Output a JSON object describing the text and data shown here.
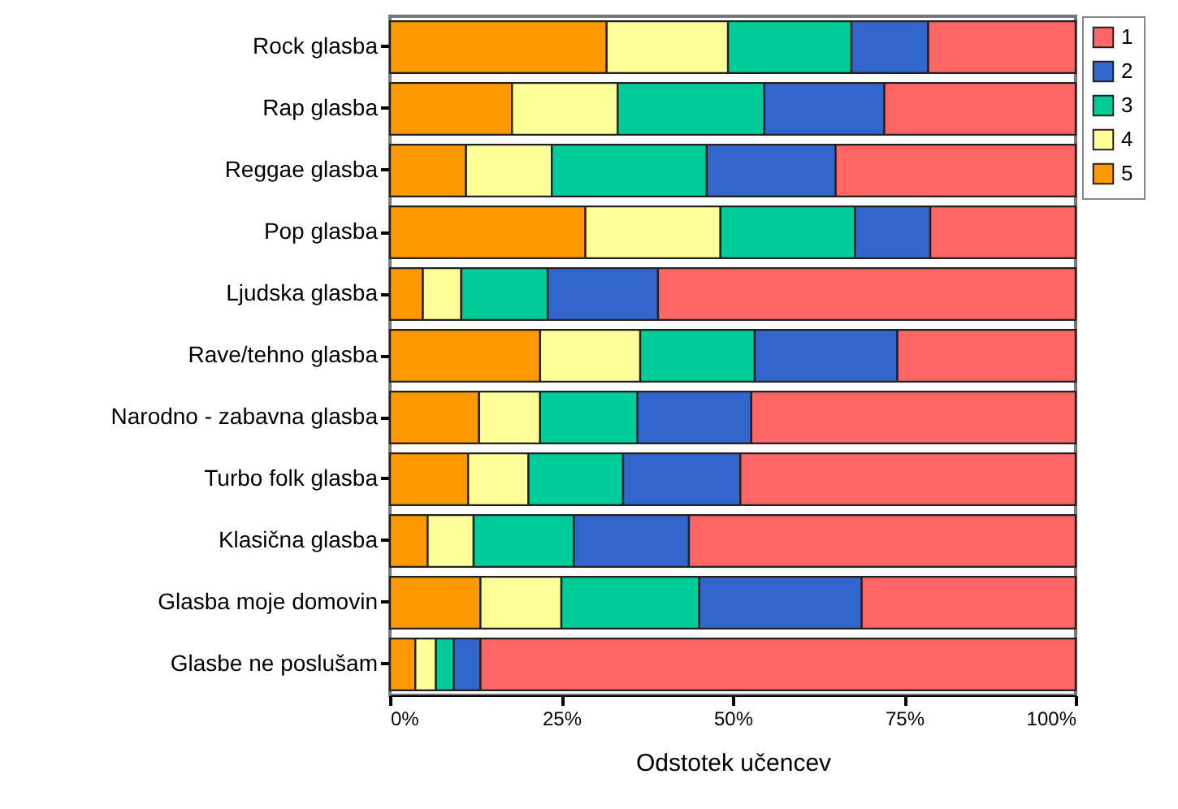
{
  "chart_data": {
    "type": "bar",
    "orientation": "horizontal",
    "stacked": true,
    "xlabel": "Odstotek učencev",
    "categories": [
      "Rock glasba",
      "Rap glasba",
      "Reggae glasba",
      "Pop glasba",
      "Ljudska glasba",
      "Rave/tehno glasba",
      "Narodno - zabavna glasba",
      "Turbo folk glasba",
      "Klasična glasba",
      "Glasba moje domovin",
      "Glasbe ne poslušam"
    ],
    "series": [
      {
        "name": "5",
        "color": "#ff9900",
        "values": [
          31.6,
          17.8,
          11.1,
          28.5,
          4.8,
          21.9,
          13.0,
          11.4,
          5.5,
          13.2,
          3.7
        ]
      },
      {
        "name": "4",
        "color": "#ffff99",
        "values": [
          17.7,
          15.4,
          12.5,
          19.7,
          5.6,
          14.6,
          8.9,
          8.8,
          6.7,
          11.8,
          3.0
        ]
      },
      {
        "name": "3",
        "color": "#00cc99",
        "values": [
          18.0,
          21.4,
          22.6,
          19.6,
          12.6,
          16.7,
          14.2,
          13.8,
          14.6,
          20.1,
          2.6
        ]
      },
      {
        "name": "2",
        "color": "#3366cc",
        "values": [
          11.2,
          17.5,
          18.8,
          11.0,
          16.1,
          20.8,
          16.6,
          17.1,
          16.8,
          23.7,
          3.9
        ]
      },
      {
        "name": "1",
        "color": "#ff6666",
        "values": [
          21.5,
          27.9,
          35.0,
          21.2,
          60.9,
          26.0,
          47.3,
          48.9,
          56.4,
          31.2,
          86.8
        ]
      }
    ],
    "xlim": [
      0,
      100
    ],
    "xticks": [
      {
        "value": 0,
        "label": "0%"
      },
      {
        "value": 25,
        "label": "25%"
      },
      {
        "value": 50,
        "label": "50%"
      },
      {
        "value": 75,
        "label": "75%"
      },
      {
        "value": 100,
        "label": "100%"
      }
    ],
    "grid": false,
    "legend": "top right"
  }
}
